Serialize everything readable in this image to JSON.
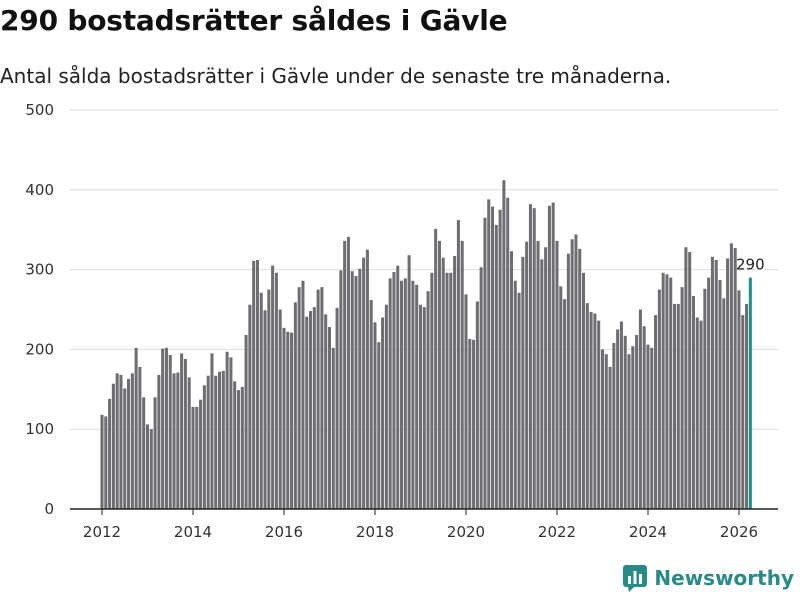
{
  "header": {
    "title": "290 bostadsrätter såldes i Gävle",
    "subtitle": "Antal sålda bostadsrätter i Gävle under de senaste tre månaderna."
  },
  "brand": {
    "name": "Newsworthy"
  },
  "colors": {
    "bar": "#6e6d71",
    "highlight": "#1e9185",
    "grid": "#dddddd",
    "brand": "#2a8a86"
  },
  "chart_data": {
    "type": "bar",
    "title": "290 bostadsrätter såldes i Gävle",
    "subtitle": "Antal sålda bostadsrätter i Gävle under de senaste tre månaderna.",
    "xlabel": "",
    "ylabel": "",
    "ylim": [
      0,
      500
    ],
    "yticks": [
      0,
      100,
      200,
      300,
      400,
      500
    ],
    "xticks": [
      2012,
      2014,
      2016,
      2018,
      2020,
      2022,
      2024,
      2026
    ],
    "start": 2012.0,
    "step": 0.08333,
    "grid": true,
    "values": [
      118,
      116,
      138,
      157,
      170,
      168,
      151,
      163,
      170,
      202,
      178,
      140,
      106,
      100,
      140,
      168,
      201,
      202,
      193,
      170,
      171,
      195,
      188,
      165,
      128,
      128,
      137,
      155,
      167,
      195,
      167,
      172,
      173,
      197,
      190,
      160,
      149,
      153,
      218,
      256,
      311,
      312,
      271,
      249,
      275,
      305,
      296,
      250,
      227,
      222,
      221,
      259,
      278,
      286,
      241,
      248,
      253,
      275,
      278,
      244,
      228,
      202,
      252,
      299,
      336,
      341,
      298,
      292,
      301,
      315,
      325,
      262,
      234,
      209,
      240,
      256,
      289,
      297,
      305,
      286,
      289,
      318,
      286,
      281,
      256,
      253,
      273,
      296,
      351,
      336,
      315,
      296,
      296,
      317,
      362,
      336,
      269,
      213,
      212,
      260,
      303,
      365,
      388,
      379,
      356,
      375,
      412,
      390,
      323,
      286,
      271,
      316,
      335,
      382,
      377,
      336,
      313,
      328,
      380,
      384,
      336,
      279,
      263,
      320,
      338,
      344,
      326,
      296,
      258,
      247,
      245,
      236,
      200,
      194,
      178,
      208,
      225,
      235,
      217,
      194,
      204,
      218,
      250,
      229,
      206,
      202,
      243,
      275,
      296,
      294,
      290,
      257,
      257,
      278,
      328,
      322,
      267,
      240,
      236,
      276,
      290,
      316,
      312,
      287,
      264,
      314,
      333,
      327,
      274,
      243,
      257,
      290
    ],
    "annotation": {
      "text": "290"
    }
  }
}
